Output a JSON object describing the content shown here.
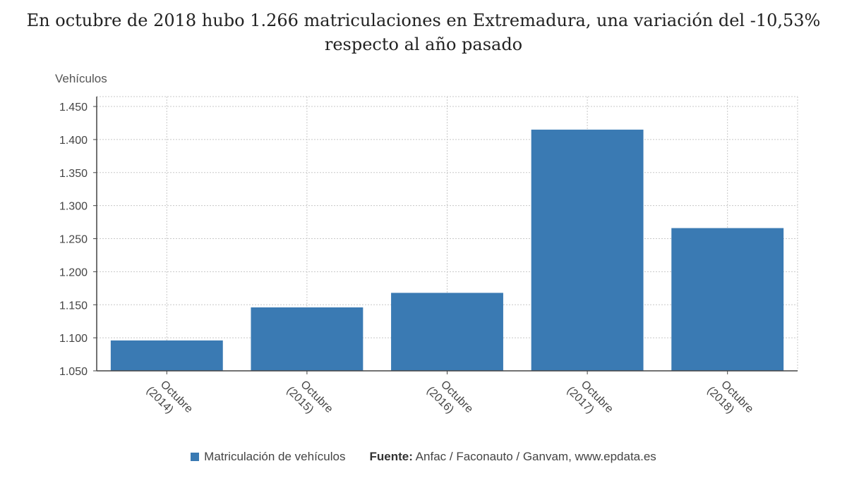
{
  "header": {
    "title_line1": "En octubre de 2018 hubo 1.266 matriculaciones en Extremadura, una variación del -10,53%",
    "title_line2": "respecto al año pasado"
  },
  "chart_data": {
    "type": "bar",
    "title": "En octubre de 2018 hubo 1.266 matriculaciones en Extremadura, una variación del -10,53% respecto al año pasado",
    "ylabel": "Vehículos",
    "xlabel": "",
    "categories": [
      [
        "Octubre",
        "(2014)"
      ],
      [
        "Octubre",
        "(2015)"
      ],
      [
        "Octubre",
        "(2016)"
      ],
      [
        "Octubre",
        "(2017)"
      ],
      [
        "Octubre",
        "(2018)"
      ]
    ],
    "series": [
      {
        "name": "Matriculación de vehículos",
        "values": [
          1096,
          1146,
          1168,
          1415,
          1266
        ]
      }
    ],
    "ylim": [
      1050,
      1465
    ],
    "yticks": [
      1050,
      1100,
      1150,
      1200,
      1250,
      1300,
      1350,
      1400,
      1450
    ],
    "ytick_labels": [
      "1.050",
      "1.100",
      "1.150",
      "1.200",
      "1.250",
      "1.300",
      "1.350",
      "1.400",
      "1.450"
    ],
    "grid": true,
    "legend_position": "bottom",
    "bar_color": "#3a7ab3"
  },
  "legend": {
    "series_label": "Matriculación de vehículos",
    "source_prefix": "Fuente:",
    "source_text": " Anfac / Faconauto / Ganvam, www.epdata.es"
  }
}
